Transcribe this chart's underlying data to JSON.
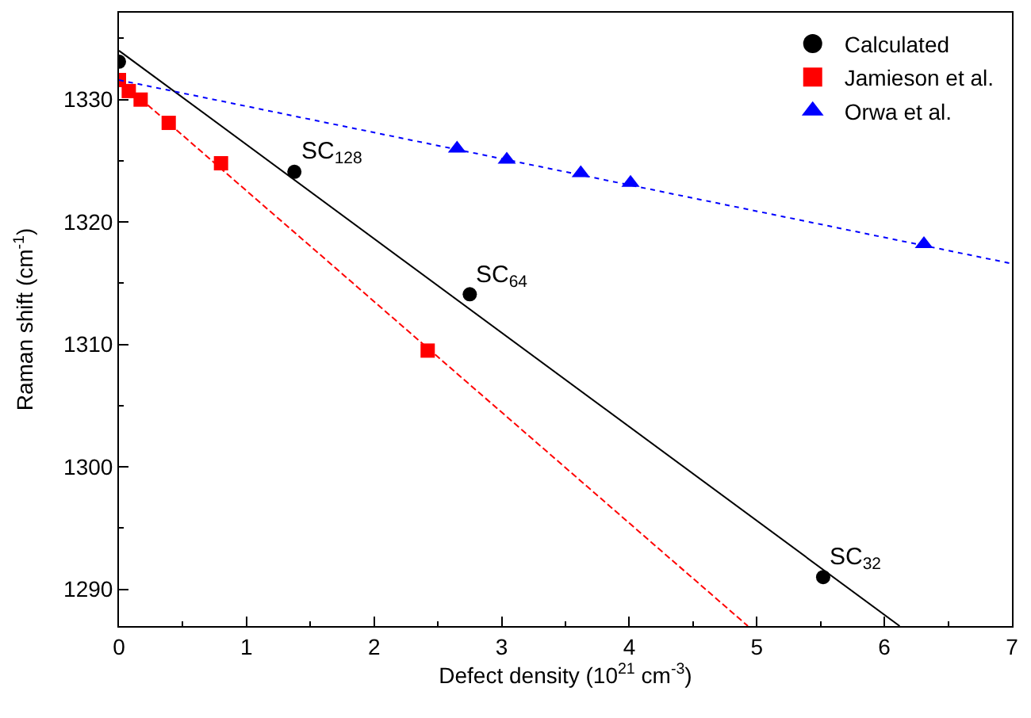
{
  "chart_data": {
    "type": "scatter",
    "xlabel": "Defect density (10$^{21}$ cm$^{-3}$)",
    "ylabel": "Raman shift (cm$^{-1}$)",
    "xlim": [
      0,
      7
    ],
    "xticks": [
      0,
      1,
      2,
      3,
      4,
      5,
      6,
      7
    ],
    "ylim": [
      1287.0,
      1337.1
    ],
    "yticks": [
      1290,
      1300,
      1310,
      1320,
      1330
    ],
    "legend": "top right",
    "series": [
      {
        "name": "Calculated",
        "marker": "circle",
        "color": "#000000",
        "x": [
          0,
          1.375,
          2.75,
          5.52
        ],
        "values": [
          1333.1,
          1324.1,
          1314.1,
          1291.0
        ]
      },
      {
        "name": "Jamieson et al.",
        "marker": "square",
        "color": "#ff0000",
        "x": [
          0,
          0.077,
          0.17,
          0.39,
          0.8,
          2.42
        ],
        "values": [
          1331.6,
          1330.7,
          1330.0,
          1328.1,
          1324.8,
          1309.5
        ]
      },
      {
        "name": "Orwa et al.",
        "marker": "triangle",
        "color": "#0000ff",
        "x": [
          2.65,
          3.04,
          3.62,
          4.01,
          6.31
        ],
        "values": [
          1326.0,
          1325.1,
          1324.0,
          1323.2,
          1318.2
        ]
      },
      {
        "type": "line",
        "line_style": "solid",
        "color": "#000000",
        "x": [
          0,
          6.12
        ],
        "values": [
          1334.0,
          1287.0
        ]
      },
      {
        "type": "line",
        "line_style": "dashed",
        "color": "#ff0000",
        "x": [
          0,
          4.93
        ],
        "values": [
          1331.6,
          1287.0
        ]
      },
      {
        "type": "line",
        "line_style": "dotted",
        "color": "#0000ff",
        "x": [
          0,
          7
        ],
        "values": [
          1331.6,
          1316.6
        ]
      }
    ],
    "annotations": [
      {
        "text": "SC$_{128}$",
        "x": 1.375,
        "y": 1324.1
      },
      {
        "text": "SC$_{64}$",
        "x": 2.75,
        "y": 1314.1
      },
      {
        "text": "SC$_{32}$",
        "x": 5.52,
        "y": 1291.0
      }
    ]
  }
}
